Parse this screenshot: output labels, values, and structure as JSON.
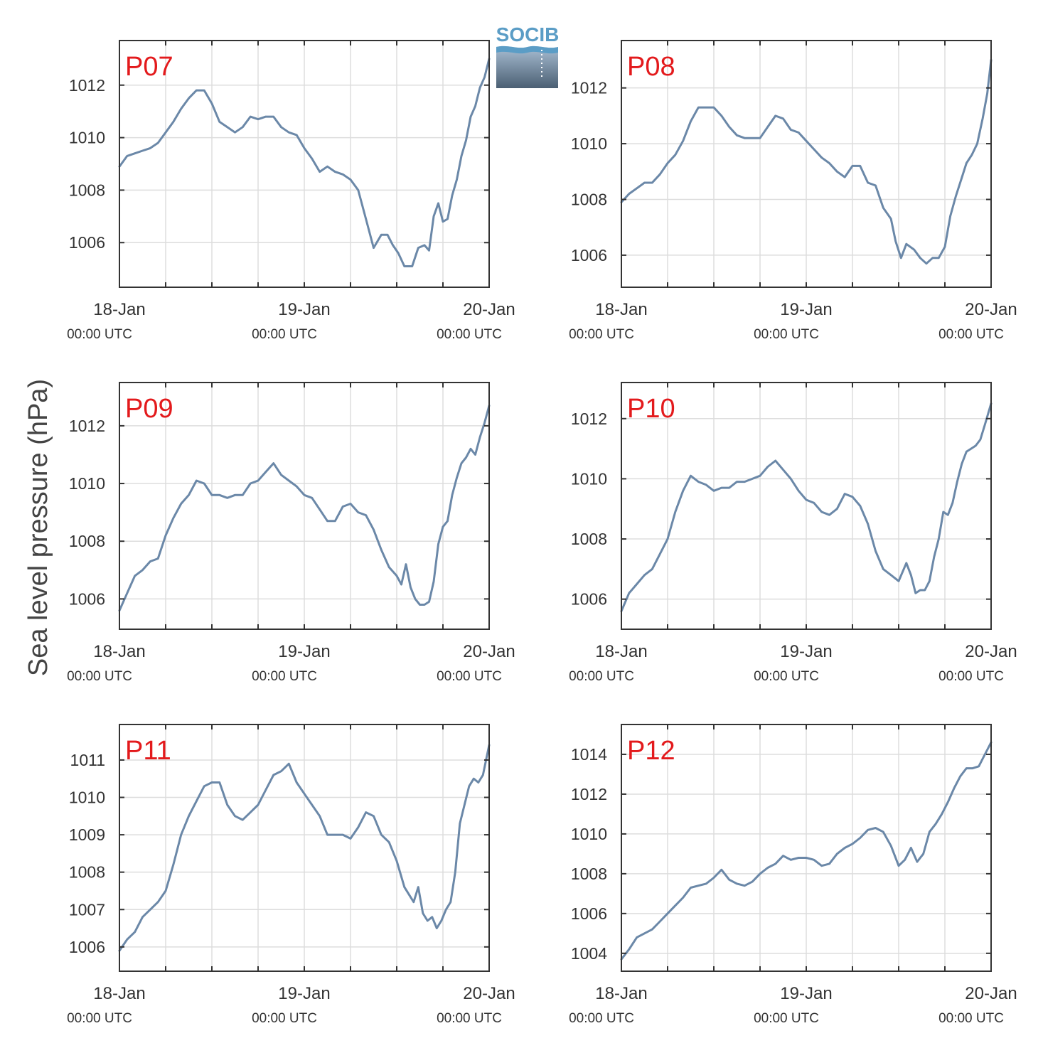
{
  "figure": {
    "ylabel": "Sea level pressure (hPa)",
    "logo_text": "SOCIB",
    "title_color": "#e31a1c",
    "line_color": "#6b88a8",
    "grid_color": "#dddddd",
    "axis_color": "#333333"
  },
  "chart_data": [
    {
      "type": "line",
      "title": "P07",
      "x_unit": "hours since 18-Jan 00:00 UTC",
      "x_ticks": [
        {
          "hour": 0,
          "date": "18-Jan",
          "time": "00:00 UTC"
        },
        {
          "hour": 24,
          "date": "19-Jan",
          "time": "00:00 UTC"
        },
        {
          "hour": 48,
          "date": "20-Jan",
          "time": "00:00 UTC"
        }
      ],
      "xlim": [
        0,
        48
      ],
      "ylim": [
        1004.3,
        1013.7
      ],
      "yticks": [
        1006,
        1008,
        1010,
        1012
      ],
      "series": [
        {
          "x": [
            0,
            1,
            2,
            3,
            4,
            5,
            6,
            7,
            8,
            9,
            10,
            11,
            12,
            13,
            14,
            15,
            16,
            17,
            18,
            19,
            20,
            21,
            22,
            23,
            24,
            25,
            26,
            27,
            28,
            29,
            30,
            31,
            32,
            33,
            34,
            34.8,
            35.5,
            36.2,
            37,
            38,
            38.8,
            39.6,
            40.2,
            40.8,
            41.4,
            42,
            42.6,
            43.2,
            43.8,
            44.4,
            45,
            45.6,
            46.2,
            46.8,
            47.4,
            48
          ],
          "y": [
            1008.9,
            1009.3,
            1009.4,
            1009.5,
            1009.6,
            1009.8,
            1010.2,
            1010.6,
            1011.1,
            1011.5,
            1011.8,
            1011.8,
            1011.3,
            1010.6,
            1010.4,
            1010.2,
            1010.4,
            1010.8,
            1010.7,
            1010.8,
            1010.8,
            1010.4,
            1010.2,
            1010.1,
            1009.6,
            1009.2,
            1008.7,
            1008.9,
            1008.7,
            1008.6,
            1008.4,
            1008.0,
            1006.9,
            1005.8,
            1006.3,
            1006.3,
            1005.9,
            1005.6,
            1005.1,
            1005.1,
            1005.8,
            1005.9,
            1005.7,
            1007.0,
            1007.5,
            1006.8,
            1006.9,
            1007.8,
            1008.4,
            1009.3,
            1009.9,
            1010.8,
            1011.2,
            1011.9,
            1012.3,
            1013.0
          ]
        }
      ]
    },
    {
      "type": "line",
      "title": "P08",
      "x_unit": "hours since 18-Jan 00:00 UTC",
      "x_ticks": [
        {
          "hour": 0,
          "date": "18-Jan",
          "time": "00:00 UTC"
        },
        {
          "hour": 24,
          "date": "19-Jan",
          "time": "00:00 UTC"
        },
        {
          "hour": 48,
          "date": "20-Jan",
          "time": "00:00 UTC"
        }
      ],
      "xlim": [
        0,
        48
      ],
      "ylim": [
        1004.85,
        1013.7
      ],
      "yticks": [
        1006,
        1008,
        1010,
        1012
      ],
      "series": [
        {
          "x": [
            0,
            1,
            2,
            3,
            4,
            5,
            6,
            7,
            8,
            9,
            10,
            11,
            12,
            13,
            14,
            15,
            16,
            17,
            18,
            19,
            20,
            21,
            22,
            23,
            24,
            25,
            26,
            27,
            28,
            29,
            30,
            31,
            32,
            33,
            34,
            35,
            35.6,
            36.3,
            37,
            38,
            38.8,
            39.6,
            40.4,
            41.2,
            42,
            42.7,
            43.4,
            44.1,
            44.8,
            45.5,
            46.2,
            46.9,
            47.5,
            48
          ],
          "y": [
            1007.9,
            1008.2,
            1008.4,
            1008.6,
            1008.6,
            1008.9,
            1009.3,
            1009.6,
            1010.1,
            1010.8,
            1011.3,
            1011.3,
            1011.3,
            1011.0,
            1010.6,
            1010.3,
            1010.2,
            1010.2,
            1010.2,
            1010.6,
            1011.0,
            1010.9,
            1010.5,
            1010.4,
            1010.1,
            1009.8,
            1009.5,
            1009.3,
            1009.0,
            1008.8,
            1009.2,
            1009.2,
            1008.6,
            1008.5,
            1007.7,
            1007.3,
            1006.5,
            1005.9,
            1006.4,
            1006.2,
            1005.9,
            1005.7,
            1005.9,
            1005.9,
            1006.3,
            1007.4,
            1008.1,
            1008.7,
            1009.3,
            1009.6,
            1010.0,
            1010.9,
            1011.8,
            1013.0
          ]
        }
      ]
    },
    {
      "type": "line",
      "title": "P09",
      "x_unit": "hours since 18-Jan 00:00 UTC",
      "x_ticks": [
        {
          "hour": 0,
          "date": "18-Jan",
          "time": "00:00 UTC"
        },
        {
          "hour": 24,
          "date": "19-Jan",
          "time": "00:00 UTC"
        },
        {
          "hour": 48,
          "date": "20-Jan",
          "time": "00:00 UTC"
        }
      ],
      "xlim": [
        0,
        48
      ],
      "ylim": [
        1004.95,
        1013.5
      ],
      "yticks": [
        1006,
        1008,
        1010,
        1012
      ],
      "series": [
        {
          "x": [
            0,
            1,
            2,
            3,
            4,
            5,
            6,
            7,
            8,
            9,
            10,
            11,
            12,
            13,
            14,
            15,
            16,
            17,
            18,
            19,
            20,
            21,
            22,
            23,
            24,
            25,
            26,
            27,
            28,
            29,
            30,
            31,
            32,
            33,
            34,
            35,
            36,
            36.6,
            37.2,
            37.8,
            38.4,
            39,
            39.6,
            40.2,
            40.8,
            41.4,
            42,
            42.6,
            43.2,
            43.8,
            44.4,
            45,
            45.6,
            46.2,
            46.8,
            47.4,
            48
          ],
          "y": [
            1005.6,
            1006.2,
            1006.8,
            1007.0,
            1007.3,
            1007.4,
            1008.2,
            1008.8,
            1009.3,
            1009.6,
            1010.1,
            1010.0,
            1009.6,
            1009.6,
            1009.5,
            1009.6,
            1009.6,
            1010.0,
            1010.1,
            1010.4,
            1010.7,
            1010.3,
            1010.1,
            1009.9,
            1009.6,
            1009.5,
            1009.1,
            1008.7,
            1008.7,
            1009.2,
            1009.3,
            1009.0,
            1008.9,
            1008.4,
            1007.7,
            1007.1,
            1006.8,
            1006.5,
            1007.2,
            1006.4,
            1006.0,
            1005.8,
            1005.8,
            1005.9,
            1006.6,
            1007.9,
            1008.5,
            1008.7,
            1009.6,
            1010.2,
            1010.7,
            1010.9,
            1011.2,
            1011.0,
            1011.6,
            1012.1,
            1012.7
          ]
        }
      ]
    },
    {
      "type": "line",
      "title": "P10",
      "x_unit": "hours since 18-Jan 00:00 UTC",
      "x_ticks": [
        {
          "hour": 0,
          "date": "18-Jan",
          "time": "00:00 UTC"
        },
        {
          "hour": 24,
          "date": "19-Jan",
          "time": "00:00 UTC"
        },
        {
          "hour": 48,
          "date": "20-Jan",
          "time": "00:00 UTC"
        }
      ],
      "xlim": [
        0,
        48
      ],
      "ylim": [
        1005.0,
        1013.2
      ],
      "yticks": [
        1006,
        1008,
        1010,
        1012
      ],
      "series": [
        {
          "x": [
            0,
            1,
            2,
            3,
            4,
            5,
            6,
            7,
            8,
            9,
            10,
            11,
            12,
            13,
            14,
            15,
            16,
            17,
            18,
            19,
            20,
            21,
            22,
            23,
            24,
            25,
            26,
            27,
            28,
            29,
            30,
            31,
            32,
            33,
            34,
            35,
            36,
            37,
            37.6,
            38.2,
            38.8,
            39.4,
            40,
            40.6,
            41.2,
            41.8,
            42.4,
            43,
            43.6,
            44.2,
            44.8,
            45.4,
            46,
            46.6,
            47.2,
            48
          ],
          "y": [
            1005.6,
            1006.2,
            1006.5,
            1006.8,
            1007.0,
            1007.5,
            1008.0,
            1008.9,
            1009.6,
            1010.1,
            1009.9,
            1009.8,
            1009.6,
            1009.7,
            1009.7,
            1009.9,
            1009.9,
            1010.0,
            1010.1,
            1010.4,
            1010.6,
            1010.3,
            1010.0,
            1009.6,
            1009.3,
            1009.2,
            1008.9,
            1008.8,
            1009.0,
            1009.5,
            1009.4,
            1009.1,
            1008.5,
            1007.6,
            1007.0,
            1006.8,
            1006.6,
            1007.2,
            1006.8,
            1006.2,
            1006.3,
            1006.3,
            1006.6,
            1007.4,
            1008.0,
            1008.9,
            1008.8,
            1009.2,
            1009.9,
            1010.5,
            1010.9,
            1011.0,
            1011.1,
            1011.3,
            1011.8,
            1012.5
          ]
        }
      ]
    },
    {
      "type": "line",
      "title": "P11",
      "x_unit": "hours since 18-Jan 00:00 UTC",
      "x_ticks": [
        {
          "hour": 0,
          "date": "18-Jan",
          "time": "00:00 UTC"
        },
        {
          "hour": 24,
          "date": "19-Jan",
          "time": "00:00 UTC"
        },
        {
          "hour": 48,
          "date": "20-Jan",
          "time": "00:00 UTC"
        }
      ],
      "xlim": [
        0,
        48
      ],
      "ylim": [
        1005.35,
        1011.95
      ],
      "yticks": [
        1006,
        1007,
        1008,
        1009,
        1010,
        1011
      ],
      "series": [
        {
          "x": [
            0,
            1,
            2,
            3,
            4,
            5,
            6,
            7,
            8,
            9,
            10,
            11,
            12,
            13,
            14,
            15,
            16,
            17,
            18,
            19,
            20,
            21,
            22,
            23,
            24,
            25,
            26,
            27,
            28,
            29,
            30,
            31,
            32,
            33,
            34,
            35,
            36,
            37,
            37.6,
            38.2,
            38.8,
            39.4,
            40,
            40.6,
            41.2,
            41.8,
            42.4,
            43,
            43.6,
            44.2,
            44.8,
            45.4,
            46,
            46.6,
            47.2,
            48
          ],
          "y": [
            1005.9,
            1006.2,
            1006.4,
            1006.8,
            1007.0,
            1007.2,
            1007.5,
            1008.2,
            1009.0,
            1009.5,
            1009.9,
            1010.3,
            1010.4,
            1010.4,
            1009.8,
            1009.5,
            1009.4,
            1009.6,
            1009.8,
            1010.2,
            1010.6,
            1010.7,
            1010.9,
            1010.4,
            1010.1,
            1009.8,
            1009.5,
            1009.0,
            1009.0,
            1009.0,
            1008.9,
            1009.2,
            1009.6,
            1009.5,
            1009.0,
            1008.8,
            1008.3,
            1007.6,
            1007.4,
            1007.2,
            1007.6,
            1006.9,
            1006.7,
            1006.8,
            1006.5,
            1006.7,
            1007.0,
            1007.2,
            1008.0,
            1009.3,
            1009.8,
            1010.3,
            1010.5,
            1010.4,
            1010.6,
            1011.4
          ]
        }
      ]
    },
    {
      "type": "line",
      "title": "P12",
      "x_unit": "hours since 18-Jan 00:00 UTC",
      "x_ticks": [
        {
          "hour": 0,
          "date": "18-Jan",
          "time": "00:00 UTC"
        },
        {
          "hour": 24,
          "date": "19-Jan",
          "time": "00:00 UTC"
        },
        {
          "hour": 48,
          "date": "20-Jan",
          "time": "00:00 UTC"
        }
      ],
      "xlim": [
        0,
        48
      ],
      "ylim": [
        1003.1,
        1015.5
      ],
      "yticks": [
        1004,
        1006,
        1008,
        1010,
        1012,
        1014
      ],
      "series": [
        {
          "x": [
            0,
            1,
            2,
            3,
            4,
            5,
            6,
            7,
            8,
            9,
            10,
            11,
            12,
            13,
            14,
            15,
            16,
            17,
            18,
            19,
            20,
            21,
            22,
            23,
            24,
            25,
            26,
            27,
            28,
            29,
            30,
            31,
            32,
            33,
            34,
            35,
            36,
            36.8,
            37.6,
            38.4,
            39.2,
            40,
            40.8,
            41.6,
            42.4,
            43.2,
            44,
            44.8,
            45.6,
            46.4,
            47.2,
            48
          ],
          "y": [
            1003.7,
            1004.2,
            1004.8,
            1005.0,
            1005.2,
            1005.6,
            1006.0,
            1006.4,
            1006.8,
            1007.3,
            1007.4,
            1007.5,
            1007.8,
            1008.2,
            1007.7,
            1007.5,
            1007.4,
            1007.6,
            1008.0,
            1008.3,
            1008.5,
            1008.9,
            1008.7,
            1008.8,
            1008.8,
            1008.7,
            1008.4,
            1008.5,
            1009.0,
            1009.3,
            1009.5,
            1009.8,
            1010.2,
            1010.3,
            1010.1,
            1009.4,
            1008.4,
            1008.7,
            1009.3,
            1008.6,
            1009.0,
            1010.1,
            1010.5,
            1011.0,
            1011.6,
            1012.3,
            1012.9,
            1013.3,
            1013.3,
            1013.4,
            1014.0,
            1014.6
          ]
        }
      ]
    }
  ]
}
